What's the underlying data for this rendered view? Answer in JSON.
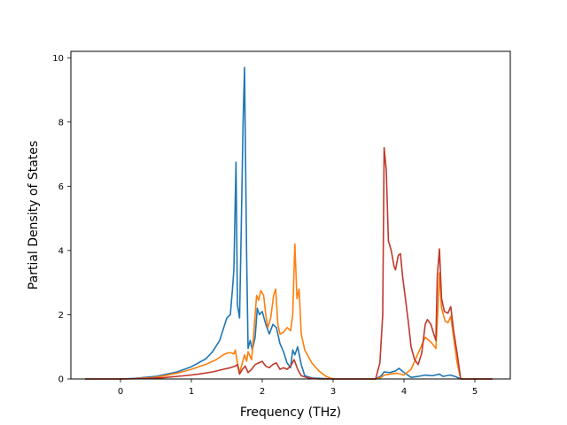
{
  "chart_data": {
    "type": "line",
    "title": "",
    "xlabel": "Frequency (THz)",
    "ylabel": "Partial Density of States",
    "xlim": [
      -0.7,
      5.5
    ],
    "ylim": [
      0,
      10.2
    ],
    "xticks": [
      0,
      1,
      2,
      3,
      4,
      5
    ],
    "xtick_labels": [
      "0",
      "1",
      "2",
      "3",
      "4",
      "5"
    ],
    "yticks": [
      0,
      2,
      4,
      6,
      8,
      10
    ],
    "ytick_labels": [
      "0",
      "2",
      "4",
      "6",
      "8",
      "10"
    ],
    "grid": false,
    "legend": null,
    "series": [
      {
        "color": "#1f77b4",
        "points": [
          [
            -0.5,
            0
          ],
          [
            0,
            0
          ],
          [
            0.2,
            0.02
          ],
          [
            0.5,
            0.08
          ],
          [
            0.8,
            0.22
          ],
          [
            1.0,
            0.38
          ],
          [
            1.2,
            0.62
          ],
          [
            1.3,
            0.85
          ],
          [
            1.4,
            1.2
          ],
          [
            1.5,
            1.9
          ],
          [
            1.55,
            2.0
          ],
          [
            1.58,
            2.8
          ],
          [
            1.6,
            3.4
          ],
          [
            1.63,
            6.75
          ],
          [
            1.65,
            2.3
          ],
          [
            1.68,
            1.9
          ],
          [
            1.7,
            4.2
          ],
          [
            1.73,
            8.0
          ],
          [
            1.75,
            9.7
          ],
          [
            1.78,
            3.8
          ],
          [
            1.8,
            0.95
          ],
          [
            1.83,
            1.2
          ],
          [
            1.86,
            0.9
          ],
          [
            1.9,
            1.3
          ],
          [
            1.93,
            2.2
          ],
          [
            1.96,
            2.0
          ],
          [
            2.0,
            2.1
          ],
          [
            2.05,
            1.7
          ],
          [
            2.1,
            1.4
          ],
          [
            2.15,
            1.7
          ],
          [
            2.2,
            1.6
          ],
          [
            2.25,
            1.1
          ],
          [
            2.3,
            0.85
          ],
          [
            2.35,
            0.5
          ],
          [
            2.4,
            0.35
          ],
          [
            2.43,
            0.9
          ],
          [
            2.46,
            0.75
          ],
          [
            2.5,
            1.0
          ],
          [
            2.55,
            0.45
          ],
          [
            2.6,
            0.1
          ],
          [
            2.7,
            0.03
          ],
          [
            3.0,
            0
          ],
          [
            3.6,
            0
          ],
          [
            3.68,
            0.1
          ],
          [
            3.72,
            0.22
          ],
          [
            3.8,
            0.2
          ],
          [
            3.88,
            0.25
          ],
          [
            3.93,
            0.33
          ],
          [
            4.0,
            0.2
          ],
          [
            4.1,
            0.05
          ],
          [
            4.2,
            0.08
          ],
          [
            4.3,
            0.12
          ],
          [
            4.4,
            0.1
          ],
          [
            4.5,
            0.15
          ],
          [
            4.55,
            0.08
          ],
          [
            4.65,
            0.12
          ],
          [
            4.72,
            0.08
          ],
          [
            4.78,
            0.02
          ],
          [
            4.82,
            0
          ],
          [
            5.25,
            0
          ]
        ]
      },
      {
        "color": "#ff7f0e",
        "points": [
          [
            -0.5,
            0
          ],
          [
            0,
            0
          ],
          [
            0.2,
            0.01
          ],
          [
            0.5,
            0.05
          ],
          [
            0.8,
            0.18
          ],
          [
            1.0,
            0.3
          ],
          [
            1.2,
            0.45
          ],
          [
            1.35,
            0.6
          ],
          [
            1.45,
            0.75
          ],
          [
            1.5,
            0.8
          ],
          [
            1.55,
            0.82
          ],
          [
            1.6,
            0.78
          ],
          [
            1.62,
            0.9
          ],
          [
            1.65,
            0.5
          ],
          [
            1.68,
            0.2
          ],
          [
            1.72,
            0.5
          ],
          [
            1.75,
            0.75
          ],
          [
            1.78,
            0.55
          ],
          [
            1.8,
            0.85
          ],
          [
            1.85,
            0.6
          ],
          [
            1.88,
            1.4
          ],
          [
            1.92,
            2.6
          ],
          [
            1.95,
            2.45
          ],
          [
            1.98,
            2.75
          ],
          [
            2.02,
            2.6
          ],
          [
            2.05,
            2.0
          ],
          [
            2.08,
            1.6
          ],
          [
            2.12,
            1.9
          ],
          [
            2.16,
            2.6
          ],
          [
            2.19,
            2.8
          ],
          [
            2.22,
            1.7
          ],
          [
            2.25,
            1.4
          ],
          [
            2.3,
            1.45
          ],
          [
            2.35,
            1.6
          ],
          [
            2.4,
            1.5
          ],
          [
            2.43,
            2.0
          ],
          [
            2.46,
            4.2
          ],
          [
            2.49,
            2.5
          ],
          [
            2.52,
            2.8
          ],
          [
            2.55,
            1.4
          ],
          [
            2.6,
            0.9
          ],
          [
            2.7,
            0.5
          ],
          [
            2.8,
            0.25
          ],
          [
            2.9,
            0.08
          ],
          [
            3.0,
            0
          ],
          [
            3.6,
            0
          ],
          [
            3.68,
            0.05
          ],
          [
            3.72,
            0.12
          ],
          [
            3.8,
            0.15
          ],
          [
            3.9,
            0.18
          ],
          [
            4.0,
            0.12
          ],
          [
            4.1,
            0.3
          ],
          [
            4.2,
            0.8
          ],
          [
            4.3,
            1.3
          ],
          [
            4.38,
            1.15
          ],
          [
            4.45,
            0.95
          ],
          [
            4.48,
            2.2
          ],
          [
            4.5,
            3.3
          ],
          [
            4.53,
            2.2
          ],
          [
            4.58,
            1.8
          ],
          [
            4.62,
            1.75
          ],
          [
            4.66,
            1.95
          ],
          [
            4.7,
            1.3
          ],
          [
            4.75,
            0.5
          ],
          [
            4.8,
            0
          ],
          [
            5.25,
            0
          ]
        ]
      },
      {
        "color": "#c0392b",
        "points": [
          [
            -0.5,
            0
          ],
          [
            0,
            0
          ],
          [
            0.3,
            0.01
          ],
          [
            0.6,
            0.04
          ],
          [
            0.9,
            0.1
          ],
          [
            1.1,
            0.15
          ],
          [
            1.3,
            0.22
          ],
          [
            1.45,
            0.3
          ],
          [
            1.55,
            0.35
          ],
          [
            1.62,
            0.4
          ],
          [
            1.65,
            0.45
          ],
          [
            1.68,
            0.15
          ],
          [
            1.72,
            0.3
          ],
          [
            1.76,
            0.4
          ],
          [
            1.8,
            0.2
          ],
          [
            1.85,
            0.3
          ],
          [
            1.9,
            0.45
          ],
          [
            1.95,
            0.5
          ],
          [
            2.0,
            0.55
          ],
          [
            2.05,
            0.4
          ],
          [
            2.1,
            0.35
          ],
          [
            2.15,
            0.45
          ],
          [
            2.2,
            0.5
          ],
          [
            2.25,
            0.3
          ],
          [
            2.3,
            0.35
          ],
          [
            2.35,
            0.3
          ],
          [
            2.4,
            0.4
          ],
          [
            2.45,
            0.6
          ],
          [
            2.5,
            0.3
          ],
          [
            2.55,
            0.1
          ],
          [
            2.65,
            0.03
          ],
          [
            2.8,
            0
          ],
          [
            3.6,
            0
          ],
          [
            3.66,
            0.5
          ],
          [
            3.7,
            2.0
          ],
          [
            3.72,
            7.2
          ],
          [
            3.75,
            6.5
          ],
          [
            3.78,
            4.3
          ],
          [
            3.82,
            4.0
          ],
          [
            3.86,
            3.5
          ],
          [
            3.88,
            3.4
          ],
          [
            3.92,
            3.85
          ],
          [
            3.95,
            3.9
          ],
          [
            3.98,
            3.2
          ],
          [
            4.02,
            2.5
          ],
          [
            4.06,
            1.8
          ],
          [
            4.1,
            1.0
          ],
          [
            4.15,
            0.6
          ],
          [
            4.2,
            0.45
          ],
          [
            4.25,
            0.8
          ],
          [
            4.3,
            1.7
          ],
          [
            4.33,
            1.85
          ],
          [
            4.38,
            1.7
          ],
          [
            4.42,
            1.4
          ],
          [
            4.45,
            1.2
          ],
          [
            4.47,
            3.2
          ],
          [
            4.5,
            4.05
          ],
          [
            4.53,
            2.5
          ],
          [
            4.57,
            2.1
          ],
          [
            4.62,
            2.05
          ],
          [
            4.66,
            2.25
          ],
          [
            4.7,
            1.5
          ],
          [
            4.75,
            0.8
          ],
          [
            4.8,
            0
          ],
          [
            5.25,
            0
          ]
        ]
      }
    ]
  }
}
